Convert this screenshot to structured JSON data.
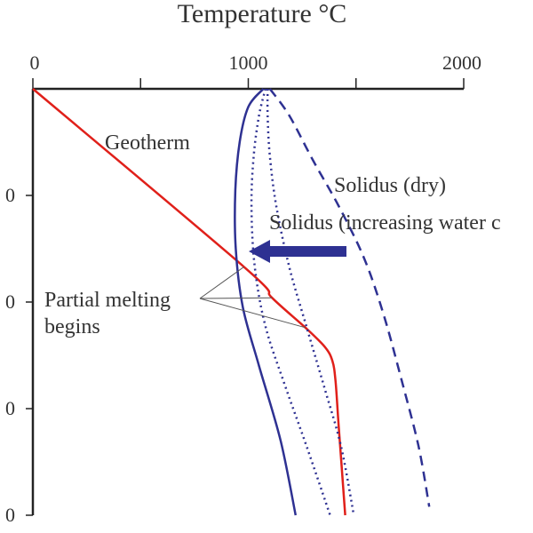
{
  "chart_data": {
    "type": "line",
    "title": "Temperature °C",
    "x_axis": {
      "position": "top",
      "range": [
        0,
        2000
      ],
      "ticks": [
        0,
        500,
        1000,
        1500,
        2000
      ],
      "tick_labels": [
        "0",
        "",
        "1000",
        "",
        "2000"
      ]
    },
    "y_axis": {
      "range": [
        0,
        4
      ],
      "ticks": [
        1,
        2,
        3,
        4
      ],
      "tick_labels": [
        "0",
        "0",
        "0",
        "0"
      ],
      "inverted": true
    },
    "grid": false,
    "series": [
      {
        "name": "Geotherm",
        "color": "#e0201a",
        "style": "solid",
        "x": [
          0,
          980,
          1110,
          1265,
          1355,
          1390,
          1405,
          1420,
          1450
        ],
        "y": [
          0,
          1.67,
          1.96,
          2.24,
          2.42,
          2.55,
          2.74,
          3.17,
          4.0
        ]
      },
      {
        "name": "Solidus (increasing water content)",
        "color": "#2e3192",
        "style": "solid",
        "x": [
          1070,
          1000,
          960,
          940,
          942,
          975,
          1050,
          1150,
          1220
        ],
        "y": [
          0,
          0.17,
          0.5,
          0.95,
          1.5,
          2.05,
          2.6,
          3.3,
          4.0
        ]
      },
      {
        "name": "Solidus (increasing water content)",
        "color": "#2e3192",
        "style": "dotted",
        "x": [
          1080,
          1050,
          1025,
          1015,
          1030,
          1080,
          1170,
          1270,
          1380
        ],
        "y": [
          0,
          0.25,
          0.63,
          1.1,
          1.67,
          2.23,
          2.78,
          3.35,
          4.0
        ]
      },
      {
        "name": "Solidus (increasing water content)",
        "color": "#2e3192",
        "style": "dotted",
        "x": [
          1090,
          1090,
          1100,
          1130,
          1190,
          1270,
          1350,
          1430,
          1490
        ],
        "y": [
          0,
          0.25,
          0.63,
          1.1,
          1.67,
          2.23,
          2.78,
          3.35,
          4.0
        ]
      },
      {
        "name": "Solidus (dry)",
        "color": "#2e3192",
        "style": "dashed",
        "x": [
          1100,
          1190,
          1300,
          1420,
          1540,
          1630,
          1710,
          1790,
          1840
        ],
        "y": [
          0,
          0.25,
          0.67,
          1.1,
          1.6,
          2.13,
          2.72,
          3.35,
          3.92
        ]
      }
    ],
    "annotations": {
      "geotherm": "Geotherm",
      "solidus_dry": "Solidus (dry)",
      "solidus_wet": "Solidus (increasing water c",
      "melting_line1": "Partial melting",
      "melting_line2": "begins"
    },
    "arrow_color": "#2e3192",
    "melting_points": [
      {
        "x": 980,
        "y": 1.67
      },
      {
        "x": 1110,
        "y": 1.96
      },
      {
        "x": 1265,
        "y": 2.24
      }
    ]
  }
}
